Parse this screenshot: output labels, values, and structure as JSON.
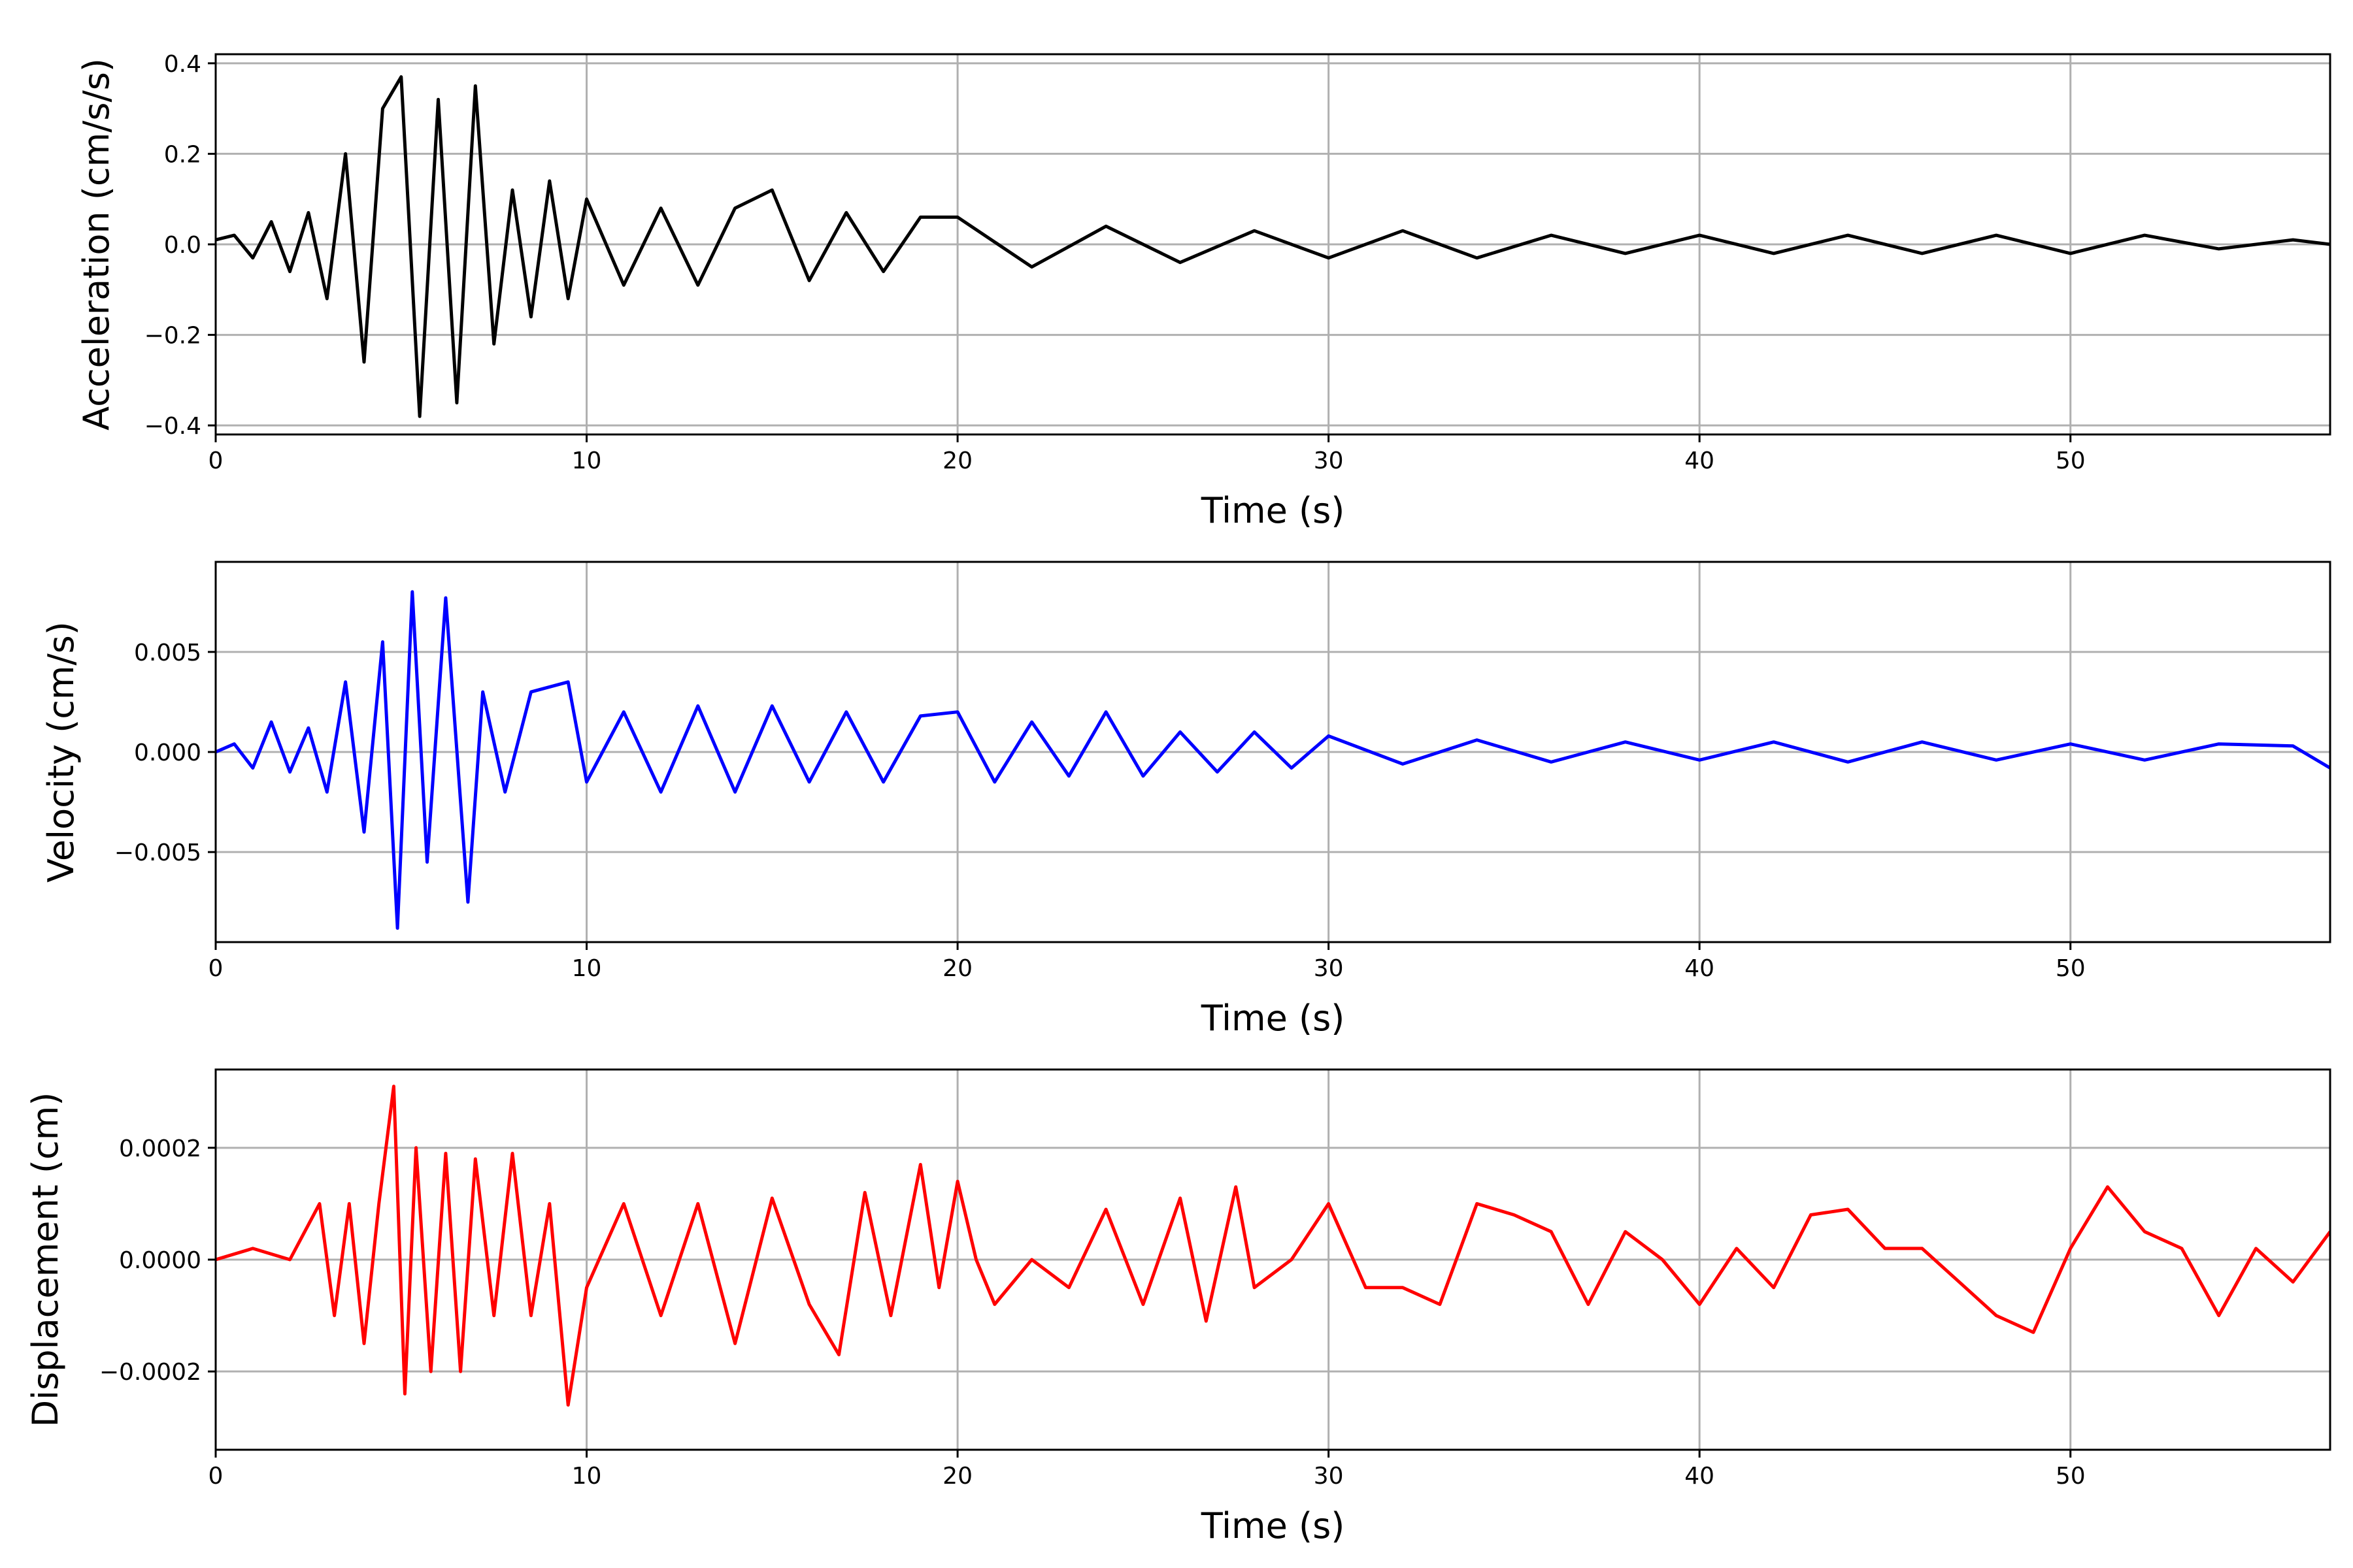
{
  "chart_data": [
    {
      "type": "line",
      "xlabel": "Time (s)",
      "ylabel": "Acceleration (cm/s/s)",
      "xlim": [
        0,
        57
      ],
      "ylim": [
        -0.42,
        0.42
      ],
      "xticks": [
        0,
        10,
        20,
        30,
        40,
        50
      ],
      "xtick_labels": [
        "0",
        "10",
        "20",
        "30",
        "40",
        "50"
      ],
      "yticks": [
        -0.4,
        -0.2,
        0.0,
        0.2,
        0.4
      ],
      "ytick_labels": [
        "−0.4",
        "−0.2",
        "0.0",
        "0.2",
        "0.4"
      ],
      "grid": true,
      "color": "#000000",
      "series": [
        {
          "x": [
            0,
            0.5,
            1,
            1.5,
            2,
            2.5,
            3,
            3.5,
            4,
            4.5,
            5,
            5.5,
            6,
            6.5,
            7,
            7.5,
            8,
            8.5,
            9,
            9.5,
            10,
            11,
            12,
            13,
            14,
            15,
            16,
            17,
            18,
            19,
            20,
            22,
            24,
            26,
            28,
            30,
            32,
            34,
            36,
            38,
            40,
            42,
            44,
            46,
            48,
            50,
            52,
            54,
            56,
            57
          ],
          "y": [
            0.01,
            0.02,
            -0.03,
            0.05,
            -0.06,
            0.07,
            -0.12,
            0.2,
            -0.26,
            0.3,
            0.37,
            -0.38,
            0.32,
            -0.35,
            0.35,
            -0.22,
            0.12,
            -0.16,
            0.14,
            -0.12,
            0.1,
            -0.09,
            0.08,
            -0.09,
            0.08,
            0.12,
            -0.08,
            0.07,
            -0.06,
            0.06,
            0.06,
            -0.05,
            0.04,
            -0.04,
            0.03,
            -0.03,
            0.03,
            -0.03,
            0.02,
            -0.02,
            0.02,
            -0.02,
            0.02,
            -0.02,
            0.02,
            -0.02,
            0.02,
            -0.01,
            0.01,
            0.0
          ]
        }
      ]
    },
    {
      "type": "line",
      "xlabel": "Time (s)",
      "ylabel": "Velocity (cm/s)",
      "xlim": [
        0,
        57
      ],
      "ylim": [
        -0.0095,
        0.0095
      ],
      "xticks": [
        0,
        10,
        20,
        30,
        40,
        50
      ],
      "xtick_labels": [
        "0",
        "10",
        "20",
        "30",
        "40",
        "50"
      ],
      "yticks": [
        -0.005,
        0.0,
        0.005
      ],
      "ytick_labels": [
        "−0.005",
        "0.000",
        "0.005"
      ],
      "grid": true,
      "color": "#0000ff",
      "series": [
        {
          "x": [
            0,
            0.5,
            1,
            1.5,
            2,
            2.5,
            3,
            3.5,
            4,
            4.5,
            4.9,
            5.3,
            5.7,
            6.2,
            6.8,
            7.2,
            7.8,
            8.5,
            9.5,
            10,
            11,
            12,
            13,
            14,
            15,
            16,
            17,
            18,
            19,
            20,
            21,
            22,
            23,
            24,
            25,
            26,
            27,
            28,
            29,
            30,
            32,
            34,
            36,
            38,
            40,
            42,
            44,
            46,
            48,
            50,
            52,
            54,
            56,
            57
          ],
          "y": [
            0.0,
            0.0004,
            -0.0008,
            0.0015,
            -0.001,
            0.0012,
            -0.002,
            0.0035,
            -0.004,
            0.0055,
            -0.0088,
            0.008,
            -0.0055,
            0.0077,
            -0.0075,
            0.003,
            -0.002,
            0.003,
            0.0035,
            -0.0015,
            0.002,
            -0.002,
            0.0023,
            -0.002,
            0.0023,
            -0.0015,
            0.002,
            -0.0015,
            0.0018,
            0.002,
            -0.0015,
            0.0015,
            -0.0012,
            0.002,
            -0.0012,
            0.001,
            -0.001,
            0.001,
            -0.0008,
            0.0008,
            -0.0006,
            0.0006,
            -0.0005,
            0.0005,
            -0.0004,
            0.0005,
            -0.0005,
            0.0005,
            -0.0004,
            0.0004,
            -0.0004,
            0.0004,
            0.0003,
            -0.0008
          ]
        }
      ]
    },
    {
      "type": "line",
      "xlabel": "Time (s)",
      "ylabel": "Displacement (cm)",
      "xlim": [
        0,
        57
      ],
      "ylim": [
        -0.00034,
        0.00034
      ],
      "xticks": [
        0,
        10,
        20,
        30,
        40,
        50
      ],
      "xtick_labels": [
        "0",
        "10",
        "20",
        "30",
        "40",
        "50"
      ],
      "yticks": [
        -0.0002,
        0.0,
        0.0002
      ],
      "ytick_labels": [
        "−0.0002",
        "0.0000",
        "0.0002"
      ],
      "grid": true,
      "color": "#ff0000",
      "series": [
        {
          "x": [
            0,
            1,
            2,
            2.8,
            3.2,
            3.6,
            4.0,
            4.4,
            4.8,
            5.1,
            5.4,
            5.8,
            6.2,
            6.6,
            7.0,
            7.5,
            8.0,
            8.5,
            9.0,
            9.5,
            10,
            11,
            12,
            13,
            14,
            15,
            16,
            16.8,
            17.5,
            18.2,
            19,
            19.5,
            20,
            20.5,
            21,
            22,
            23,
            24,
            25,
            26,
            26.7,
            27.5,
            28,
            29,
            30,
            31,
            32,
            33,
            34,
            35,
            36,
            37,
            38,
            39,
            40,
            41,
            42,
            43,
            44,
            45,
            46,
            47,
            48,
            49,
            50,
            51,
            52,
            53,
            54,
            55,
            56,
            57
          ],
          "y": [
            0.0,
            2e-05,
            0.0,
            0.0001,
            -0.0001,
            0.0001,
            -0.00015,
            0.0001,
            0.00031,
            -0.00024,
            0.0002,
            -0.0002,
            0.00019,
            -0.0002,
            0.00018,
            -0.0001,
            0.00019,
            -0.0001,
            0.0001,
            -0.00026,
            -5e-05,
            0.0001,
            -0.0001,
            0.0001,
            -0.00015,
            0.00011,
            -8e-05,
            -0.00017,
            0.00012,
            -0.0001,
            0.00017,
            -5e-05,
            0.00014,
            0.0,
            -8e-05,
            0.0,
            -5e-05,
            9e-05,
            -8e-05,
            0.00011,
            -0.00011,
            0.00013,
            -5e-05,
            0.0,
            0.0001,
            -5e-05,
            -5e-05,
            -8e-05,
            0.0001,
            8e-05,
            5e-05,
            -8e-05,
            5e-05,
            0.0,
            -8e-05,
            2e-05,
            -5e-05,
            8e-05,
            9e-05,
            2e-05,
            2e-05,
            -4e-05,
            -0.0001,
            -0.00013,
            2e-05,
            0.00013,
            5e-05,
            2e-05,
            -0.0001,
            2e-05,
            -4e-05,
            5e-05
          ]
        }
      ]
    }
  ]
}
